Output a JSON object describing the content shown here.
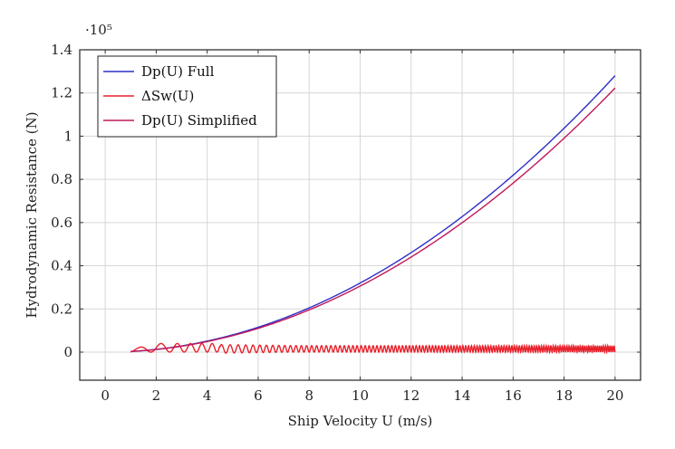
{
  "chart_data": {
    "type": "line",
    "title": "",
    "xlabel": "Ship Velocity U (m/s)",
    "ylabel": "Hydrodynamic Resistance (N)",
    "y_multiplier": "·10⁵",
    "xlim": [
      -1,
      21
    ],
    "ylim": [
      -0.13,
      1.4
    ],
    "xticks": [
      0,
      2,
      4,
      6,
      8,
      10,
      12,
      14,
      16,
      18,
      20
    ],
    "yticks": [
      0,
      0.2,
      0.4,
      0.6,
      0.8,
      1,
      1.2,
      1.4
    ],
    "xtick_labels": [
      "0",
      "2",
      "4",
      "6",
      "8",
      "10",
      "12",
      "14",
      "16",
      "18",
      "20"
    ],
    "ytick_labels": [
      "0",
      "0.2",
      "0.4",
      "0.6",
      "0.8",
      "1",
      "1.2",
      "1.4"
    ],
    "grid": true,
    "legend_position": "top-left",
    "series": [
      {
        "name": "Dp(U) Full",
        "color": "#2e2ec8",
        "x": [
          1,
          2,
          4,
          6,
          8,
          10,
          12,
          14,
          16,
          18,
          20
        ],
        "y": [
          0.0032,
          0.0128,
          0.0512,
          0.115,
          0.205,
          0.32,
          0.461,
          0.627,
          0.819,
          1.037,
          1.28
        ]
      },
      {
        "name": "ΔSw(U)",
        "color": "#e8202a",
        "oscillating": true,
        "x": [
          1,
          2.2,
          3.0,
          3.8,
          4.6,
          20
        ],
        "y": [
          0.0,
          0.04,
          0.0,
          0.04,
          0.0,
          0.03
        ]
      },
      {
        "name": "Dp(U) Simplified",
        "color": "#c0185a",
        "x": [
          1,
          2,
          4,
          6,
          8,
          10,
          12,
          14,
          16,
          18,
          20
        ],
        "y": [
          0.0031,
          0.0122,
          0.0489,
          0.11,
          0.196,
          0.306,
          0.44,
          0.599,
          0.783,
          0.991,
          1.223
        ]
      }
    ]
  }
}
